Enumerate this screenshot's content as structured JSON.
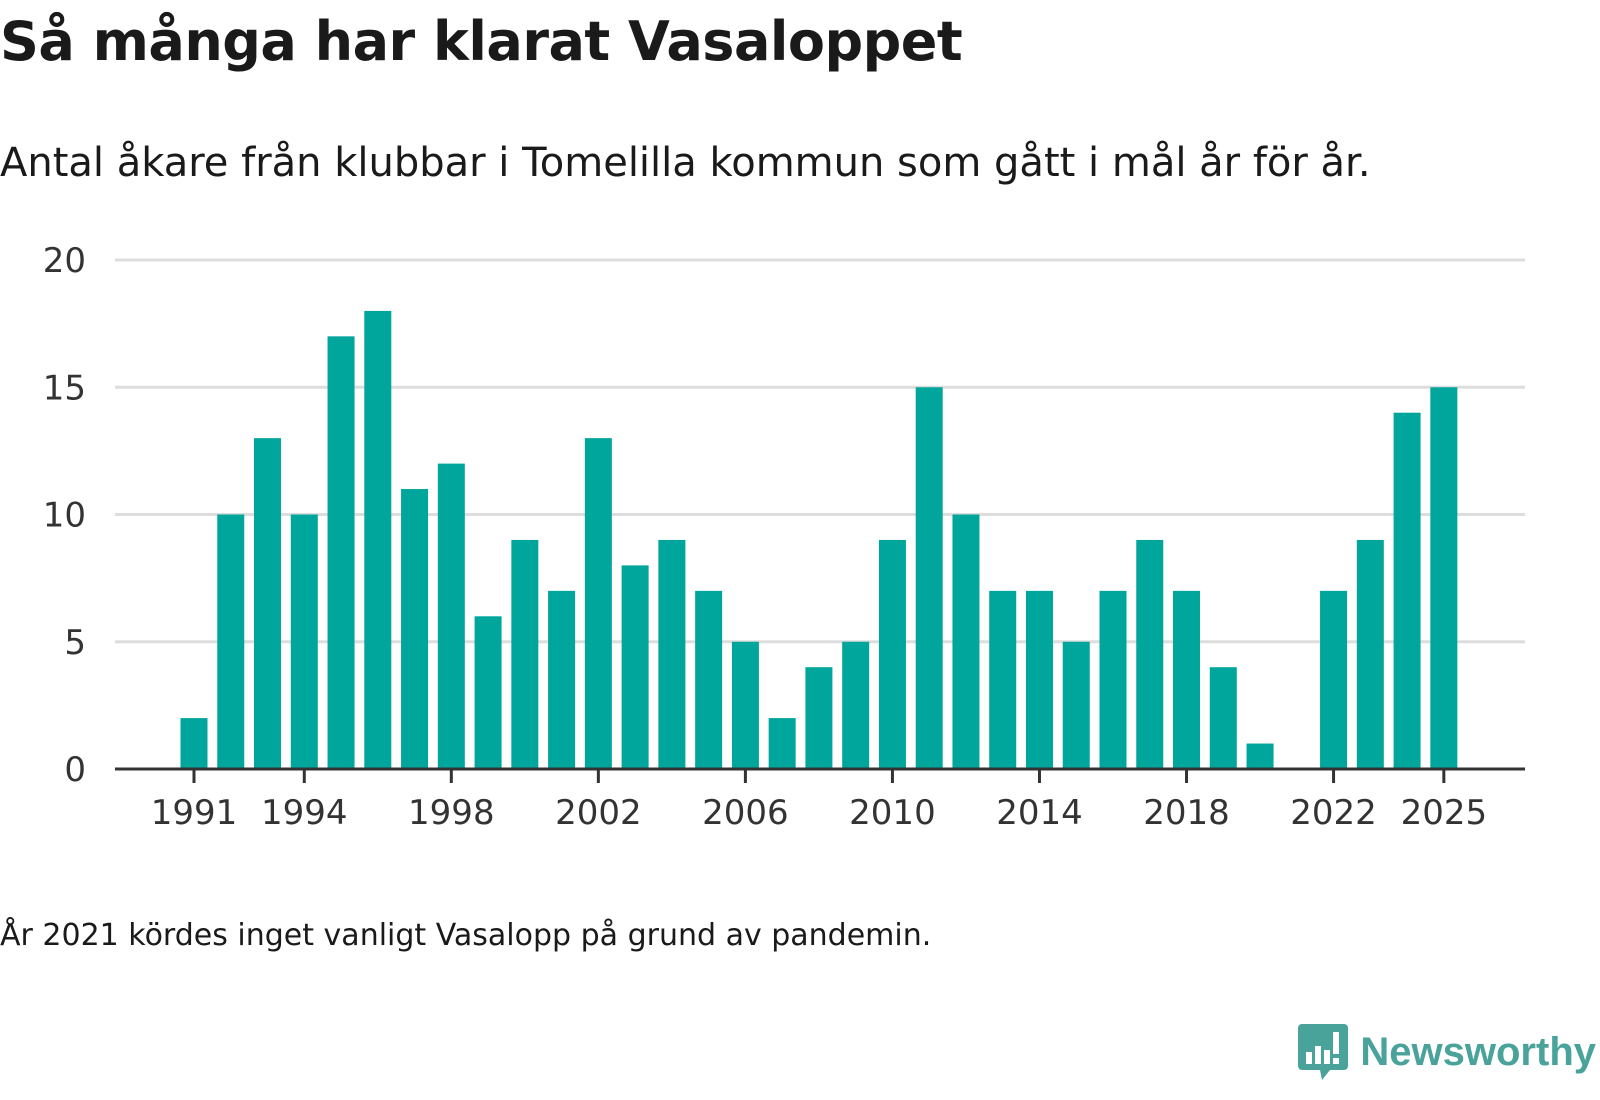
{
  "title": "Så många har klarat Vasaloppet",
  "subtitle": "Antal åkare från klubbar i Tomelilla kommun som gått i mål år för år.",
  "note": "År 2021 kördes inget vanligt Vasalopp på grund av pandemin.",
  "logo": {
    "text": "Newsworthy",
    "icon": "newsworthy-logo-icon"
  },
  "colors": {
    "bar": "#00a59b",
    "grid": "#dddddd",
    "axis": "#333333",
    "text": "#1a1a1a",
    "brand": "#4aa39a"
  },
  "chart_data": {
    "type": "bar",
    "title": "Så många har klarat Vasaloppet",
    "xlabel": "",
    "ylabel": "",
    "ylim": [
      0,
      20
    ],
    "yticks": [
      0,
      5,
      10,
      15,
      20
    ],
    "xticks": [
      1991,
      1994,
      1998,
      2002,
      2006,
      2010,
      2014,
      2018,
      2022,
      2025
    ],
    "grid": true,
    "categories": [
      1991,
      1992,
      1993,
      1994,
      1995,
      1996,
      1997,
      1998,
      1999,
      2000,
      2001,
      2002,
      2003,
      2004,
      2005,
      2006,
      2007,
      2008,
      2009,
      2010,
      2011,
      2012,
      2013,
      2014,
      2015,
      2016,
      2017,
      2018,
      2019,
      2020,
      2021,
      2022,
      2023,
      2024,
      2025
    ],
    "values": [
      2,
      10,
      13,
      10,
      17,
      18,
      11,
      12,
      6,
      9,
      7,
      13,
      8,
      9,
      7,
      5,
      2,
      4,
      5,
      9,
      15,
      10,
      7,
      7,
      5,
      7,
      9,
      7,
      4,
      1,
      null,
      7,
      9,
      14,
      15
    ]
  }
}
